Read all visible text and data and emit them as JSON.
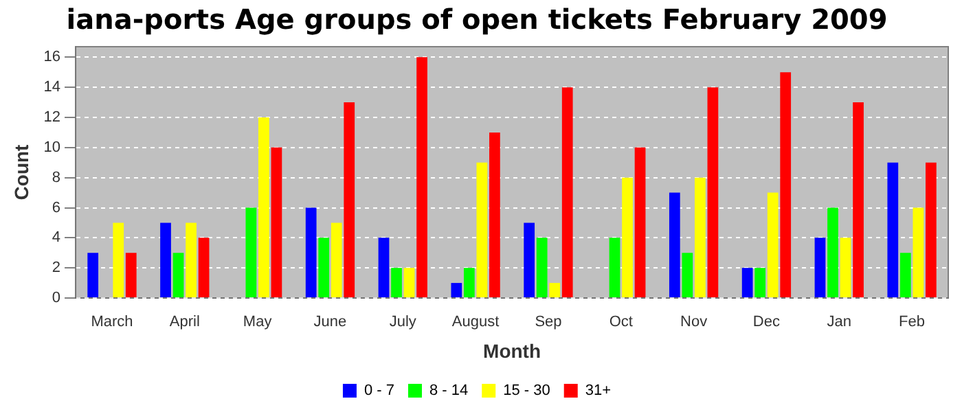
{
  "chart_data": {
    "type": "bar",
    "title": "iana-ports Age groups of open tickets February 2009",
    "xlabel": "Month",
    "ylabel": "Count",
    "categories": [
      "March",
      "April",
      "May",
      "June",
      "July",
      "August",
      "Sep",
      "Oct",
      "Nov",
      "Dec",
      "Jan",
      "Feb"
    ],
    "series": [
      {
        "name": "0 - 7",
        "color": "#0000ff",
        "values": [
          3,
          5,
          0,
          6,
          4,
          1,
          5,
          0,
          7,
          2,
          4,
          9
        ]
      },
      {
        "name": "8 - 14",
        "color": "#00ff00",
        "values": [
          0,
          3,
          6,
          4,
          2,
          2,
          4,
          4,
          3,
          2,
          6,
          3
        ]
      },
      {
        "name": "15 - 30",
        "color": "#ffff00",
        "values": [
          5,
          5,
          12,
          5,
          2,
          9,
          1,
          8,
          8,
          7,
          4,
          6
        ]
      },
      {
        "name": "31+",
        "color": "#ff0000",
        "values": [
          3,
          4,
          10,
          13,
          16,
          11,
          14,
          10,
          14,
          15,
          13,
          9
        ]
      }
    ],
    "ylim": [
      0,
      16.7
    ],
    "yticks": [
      0,
      2,
      4,
      6,
      8,
      10,
      12,
      14,
      16
    ],
    "grid": "y",
    "legend": "bottom"
  }
}
